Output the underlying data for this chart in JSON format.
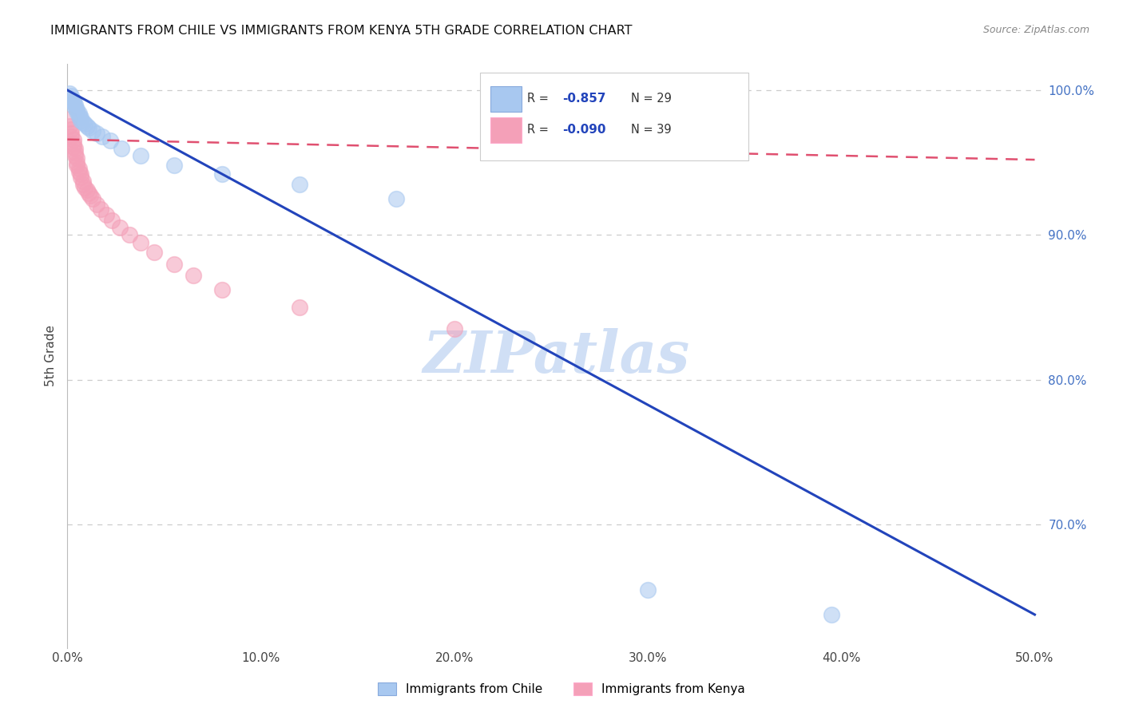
{
  "title": "IMMIGRANTS FROM CHILE VS IMMIGRANTS FROM KENYA 5TH GRADE CORRELATION CHART",
  "source": "Source: ZipAtlas.com",
  "ylabel": "5th Grade",
  "chile_color": "#A8C8F0",
  "kenya_color": "#F4A0B8",
  "trendline_chile_color": "#2244BB",
  "trendline_kenya_color": "#E05070",
  "R_chile": -0.857,
  "N_chile": 29,
  "R_kenya": -0.09,
  "N_kenya": 39,
  "watermark": "ZIPatlas",
  "watermark_color": "#D0DFF5",
  "background_color": "#FFFFFF",
  "right_tick_color": "#4472C4",
  "chile_x": [
    0.001,
    0.002,
    0.002,
    0.003,
    0.003,
    0.004,
    0.004,
    0.005,
    0.005,
    0.006,
    0.006,
    0.007,
    0.007,
    0.008,
    0.009,
    0.01,
    0.011,
    0.013,
    0.015,
    0.018,
    0.022,
    0.028,
    0.038,
    0.055,
    0.08,
    0.12,
    0.17,
    0.3,
    0.395
  ],
  "chile_y": [
    0.998,
    0.996,
    0.994,
    0.993,
    0.991,
    0.99,
    0.988,
    0.987,
    0.985,
    0.984,
    0.982,
    0.981,
    0.979,
    0.978,
    0.977,
    0.975,
    0.974,
    0.972,
    0.97,
    0.968,
    0.965,
    0.96,
    0.955,
    0.948,
    0.942,
    0.935,
    0.925,
    0.655,
    0.638
  ],
  "kenya_x": [
    0.001,
    0.001,
    0.002,
    0.002,
    0.002,
    0.003,
    0.003,
    0.003,
    0.004,
    0.004,
    0.004,
    0.005,
    0.005,
    0.005,
    0.006,
    0.006,
    0.007,
    0.007,
    0.008,
    0.008,
    0.009,
    0.01,
    0.011,
    0.012,
    0.013,
    0.015,
    0.017,
    0.02,
    0.023,
    0.027,
    0.032,
    0.038,
    0.045,
    0.055,
    0.065,
    0.08,
    0.12,
    0.2,
    0.33
  ],
  "kenya_y": [
    0.98,
    0.975,
    0.973,
    0.97,
    0.968,
    0.966,
    0.963,
    0.961,
    0.96,
    0.957,
    0.955,
    0.953,
    0.95,
    0.948,
    0.946,
    0.944,
    0.942,
    0.94,
    0.937,
    0.935,
    0.933,
    0.931,
    0.929,
    0.927,
    0.925,
    0.921,
    0.918,
    0.914,
    0.91,
    0.905,
    0.9,
    0.895,
    0.888,
    0.88,
    0.872,
    0.862,
    0.85,
    0.835,
    0.96
  ],
  "chile_trend_x": [
    0.0,
    0.5
  ],
  "chile_trend_y": [
    1.0,
    0.638
  ],
  "kenya_trend_x": [
    0.0,
    0.5
  ],
  "kenya_trend_y": [
    0.966,
    0.952
  ],
  "xlim": [
    0.0,
    0.505
  ],
  "ylim": [
    0.615,
    1.018
  ],
  "yticks": [
    1.0,
    0.9,
    0.8,
    0.7
  ],
  "ytick_labels_right": [
    "100.0%",
    "90.0%",
    "80.0%",
    "70.0%"
  ],
  "xticks": [
    0.0,
    0.1,
    0.2,
    0.3,
    0.4,
    0.5
  ],
  "xtick_labels": [
    "0.0%",
    "10.0%",
    "20.0%",
    "30.0%",
    "40.0%",
    "50.0%"
  ]
}
